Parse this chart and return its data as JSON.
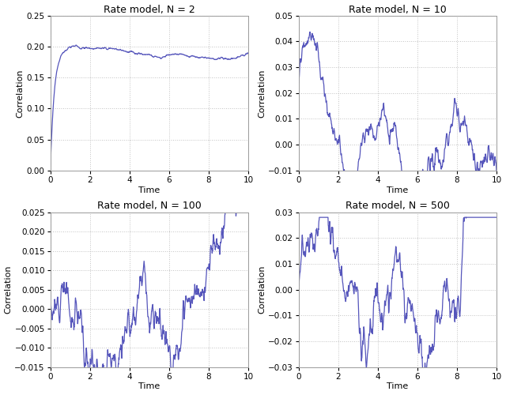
{
  "line_color": "#5555bb",
  "line_width": 0.9,
  "background_color": "#ffffff",
  "grid_color": "#bbbbbb",
  "grid_style": ":",
  "title_fontsize": 9,
  "label_fontsize": 8,
  "tick_fontsize": 7.5,
  "subplots": [
    {
      "title": "Rate model, N = 2",
      "xlabel": "Time",
      "ylabel": "Correlation",
      "xlim": [
        0,
        10
      ],
      "ylim": [
        0.0,
        0.25
      ],
      "yticks": [
        0.0,
        0.05,
        0.1,
        0.15,
        0.2,
        0.25
      ]
    },
    {
      "title": "Rate model, N = 10",
      "xlabel": "Time",
      "ylabel": "Correlation",
      "xlim": [
        0,
        10
      ],
      "ylim": [
        -0.01,
        0.05
      ],
      "yticks": [
        -0.01,
        0.0,
        0.01,
        0.02,
        0.03,
        0.04,
        0.05
      ]
    },
    {
      "title": "Rate model, N = 100",
      "xlabel": "Time",
      "ylabel": "Correlation",
      "xlim": [
        0,
        10
      ],
      "ylim": [
        -0.015,
        0.025
      ],
      "yticks": [
        -0.015,
        -0.01,
        -0.005,
        0.0,
        0.005,
        0.01,
        0.015,
        0.02,
        0.025
      ]
    },
    {
      "title": "Rate model, N = 500",
      "xlabel": "Time",
      "ylabel": "Correlation",
      "xlim": [
        0,
        10
      ],
      "ylim": [
        -0.03,
        0.03
      ],
      "yticks": [
        -0.03,
        -0.02,
        -0.01,
        0.0,
        0.01,
        0.02,
        0.03
      ]
    }
  ]
}
